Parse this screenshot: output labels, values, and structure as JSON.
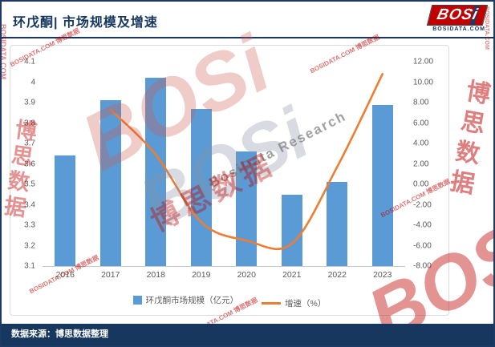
{
  "header": {
    "title": "环戊酮| 市场规模及增速",
    "logo": {
      "text": "BOSi",
      "sub": "BOSIDATA.COM"
    }
  },
  "chart_data": {
    "type": "bar",
    "title": "环戊酮| 市场规模及增速",
    "categories": [
      "2016",
      "2017",
      "2018",
      "2019",
      "2020",
      "2021",
      "2022",
      "2023"
    ],
    "series": [
      {
        "name": "环戊酮市场规模（亿元）",
        "type": "bar",
        "axis": "left",
        "color": "#5b9bd5",
        "values": [
          3.64,
          3.91,
          4.02,
          3.87,
          3.66,
          3.45,
          3.51,
          3.89
        ]
      },
      {
        "name": "增速（%）",
        "type": "line",
        "axis": "right",
        "color": "#ed7d31",
        "values": [
          null,
          7.3,
          2.9,
          -3.7,
          -5.5,
          -5.8,
          1.7,
          10.8
        ]
      }
    ],
    "left_axis": {
      "min": 3.1,
      "max": 4.1,
      "step": 0.1,
      "ticks": [
        "4.1",
        "4",
        "3.9",
        "3.8",
        "3.7",
        "3.6",
        "3.5",
        "3.4",
        "3.3",
        "3.2",
        "3.1"
      ]
    },
    "right_axis": {
      "min": -8,
      "max": 12,
      "step": 2,
      "ticks": [
        "12.00",
        "10.00",
        "8.00",
        "6.00",
        "4.00",
        "2.00",
        "0.00",
        "-2.00",
        "-4.00",
        "-6.00",
        "-8.00"
      ]
    },
    "legend": [
      {
        "label": "环戊酮市场规模（亿元）",
        "swatch": "bar",
        "color": "#5b9bd5"
      },
      {
        "label": "增速（%）",
        "swatch": "line",
        "color": "#ed7d31"
      }
    ],
    "legend_position": "bottom",
    "grid": false
  },
  "footer": {
    "source": "数据来源：博思数据整理"
  },
  "watermarks": {
    "brand": "BOSi",
    "cn": "博思数据",
    "research": "BosiData Research",
    "site": "BOSIDATA.COM",
    "small": "BOSIDATA.COM 博思数据"
  },
  "colors": {
    "navy": "#17375e",
    "bar": "#5b9bd5",
    "line": "#ed7d31",
    "logo_red": "#c00000"
  }
}
